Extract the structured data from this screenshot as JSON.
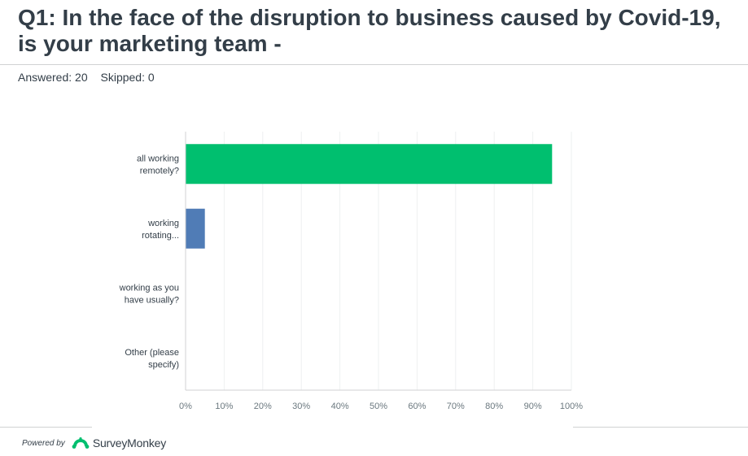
{
  "header": {
    "title_line1": "Q1: In the face of the disruption to business caused by Covid-19,",
    "title_line2": "is your marketing team -",
    "answered": "Answered: 20",
    "skipped": "Skipped: 0"
  },
  "chart_data": {
    "type": "bar",
    "orientation": "horizontal",
    "categories": [
      [
        "all working",
        "remotely?"
      ],
      [
        "working",
        "rotating..."
      ],
      [
        "working as you",
        "have usually?"
      ],
      [
        "Other (please",
        "specify)"
      ]
    ],
    "values": [
      95,
      5,
      0,
      0
    ],
    "bar_colors": [
      "#00bf6f",
      "#507cb6",
      "#f9be00",
      "#6bc8cd"
    ],
    "xlim": [
      0,
      100
    ],
    "xticks": [
      "0%",
      "10%",
      "20%",
      "30%",
      "40%",
      "50%",
      "60%",
      "70%",
      "80%",
      "90%",
      "100%"
    ],
    "grid": true,
    "title": "",
    "xlabel": "",
    "ylabel": ""
  },
  "footer": {
    "powered_by": "Powered by",
    "brand": "SurveyMonkey",
    "brand_icon": "surveymonkey-logo-icon",
    "brand_color": "#00bf6f"
  }
}
